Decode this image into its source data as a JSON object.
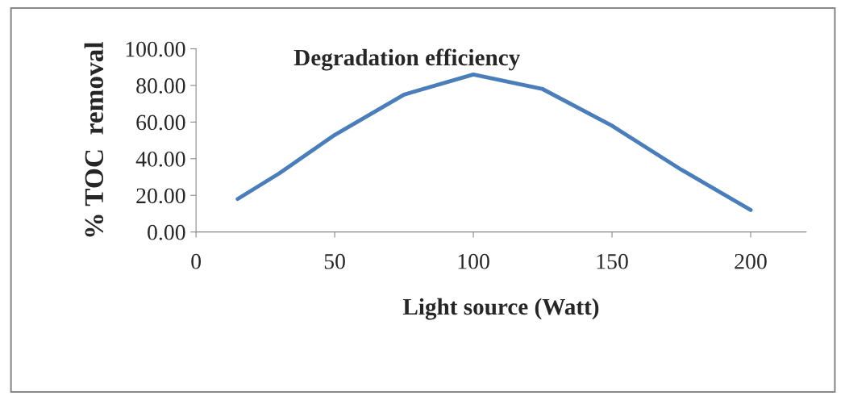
{
  "chart_data": {
    "type": "line",
    "title": "Degradation efficiency",
    "xlabel": "Light source (Watt)",
    "ylabel": "% TOC  removal",
    "x": [
      15,
      30,
      50,
      75,
      100,
      125,
      150,
      175,
      200
    ],
    "series": [
      {
        "color": "#4a7ebb",
        "values": [
          18,
          32,
          53,
          75,
          86,
          78,
          58,
          34,
          12
        ]
      }
    ],
    "xlim": [
      0,
      220
    ],
    "xticks": [
      0,
      50,
      100,
      150,
      200
    ],
    "ylim": [
      0,
      100
    ],
    "yticks": [
      {
        "value": 0,
        "label": "0.00"
      },
      {
        "value": 20,
        "label": "20.00"
      },
      {
        "value": 40,
        "label": "40.00"
      },
      {
        "value": 60,
        "label": "60.00"
      },
      {
        "value": 80,
        "label": "80.00"
      },
      {
        "value": 100,
        "label": "100.00"
      }
    ],
    "grid": false,
    "legend": false,
    "marker": "none",
    "line_style": "solid"
  }
}
